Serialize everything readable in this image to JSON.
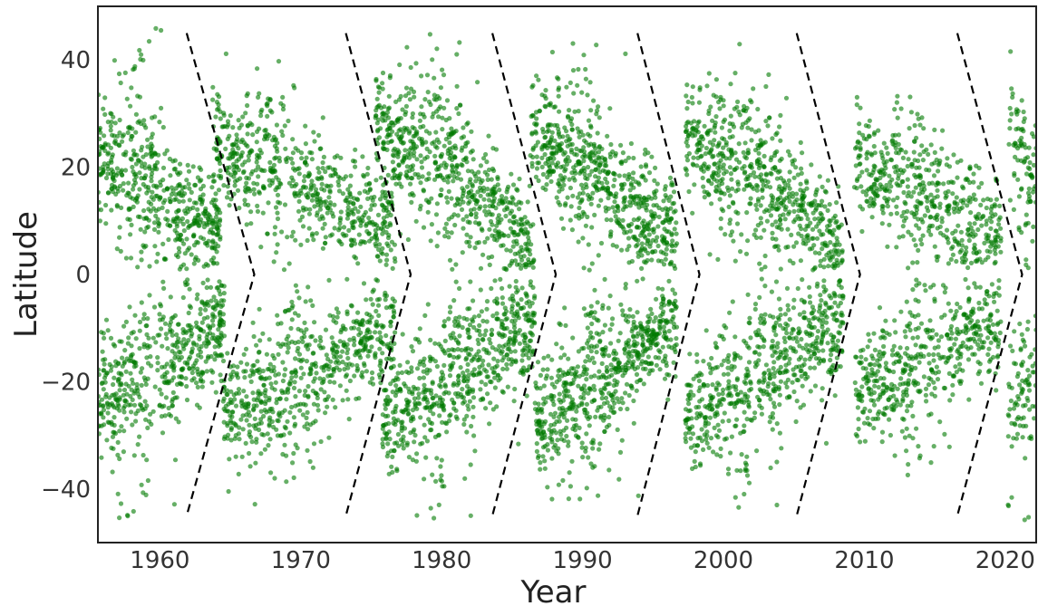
{
  "chart_data": {
    "type": "scatter",
    "title": "",
    "xlabel": "Year",
    "ylabel": "Latitude",
    "xlim": [
      1955.6,
      2022.2
    ],
    "ylim": [
      -50,
      50
    ],
    "xticks": [
      1960,
      1970,
      1980,
      1990,
      2000,
      2010,
      2020
    ],
    "xtick_labels": [
      "1960",
      "1970",
      "1980",
      "1990",
      "2000",
      "2010",
      "2020"
    ],
    "yticks": [
      40,
      20,
      0,
      -20,
      -40
    ],
    "ytick_labels": [
      "40",
      "20",
      "0",
      "−20",
      "−40"
    ],
    "grid": false,
    "legend": null,
    "colors": {
      "points": "#007a00",
      "guides": "#000000",
      "frame": "#222222"
    },
    "series": [
      {
        "kind": "points",
        "approximate": true,
        "clusters": [
          {
            "hemisphere": "north",
            "x": [
              1955.6,
              1964.3
            ],
            "start_lat": 22,
            "end_lat": 8,
            "peak": 1958.5,
            "peak_lat_max": 46,
            "n": 520
          },
          {
            "hemisphere": "south",
            "x": [
              1955.6,
              1964.6
            ],
            "start_lat": -24,
            "end_lat": -9,
            "peak": 1958.5,
            "peak_lat_max": -48,
            "n": 520
          },
          {
            "hemisphere": "north",
            "x": [
              1963.7,
              1976.7
            ],
            "start_lat": 25,
            "end_lat": 8,
            "peak": 1968.5,
            "peak_lat_max": 36,
            "n": 620
          },
          {
            "hemisphere": "south",
            "x": [
              1964.5,
              1976.7
            ],
            "start_lat": -26,
            "end_lat": -10,
            "peak": 1969.5,
            "peak_lat_max": -38,
            "n": 620
          },
          {
            "hemisphere": "north",
            "x": [
              1975.3,
              1986.6
            ],
            "start_lat": 29,
            "end_lat": 6,
            "peak": 1979.5,
            "peak_lat_max": 44,
            "n": 640
          },
          {
            "hemisphere": "south",
            "x": [
              1975.8,
              1986.6
            ],
            "start_lat": -28,
            "end_lat": -8,
            "peak": 1980.3,
            "peak_lat_max": -46,
            "n": 640
          },
          {
            "hemisphere": "north",
            "x": [
              1986.3,
              1996.7
            ],
            "start_lat": 28,
            "end_lat": 6,
            "peak": 1990,
            "peak_lat_max": 44,
            "n": 640
          },
          {
            "hemisphere": "south",
            "x": [
              1986.6,
              1996.7
            ],
            "start_lat": -28,
            "end_lat": -9,
            "peak": 1990.5,
            "peak_lat_max": -42,
            "n": 640
          },
          {
            "hemisphere": "north",
            "x": [
              1997.3,
              2008.5
            ],
            "start_lat": 26,
            "end_lat": 6,
            "peak": 2001,
            "peak_lat_max": 38,
            "n": 620
          },
          {
            "hemisphere": "south",
            "x": [
              1997.3,
              2008.5
            ],
            "start_lat": -27,
            "end_lat": -8,
            "peak": 2002,
            "peak_lat_max": -44,
            "n": 620
          },
          {
            "hemisphere": "north",
            "x": [
              2009.3,
              2019.7
            ],
            "start_lat": 22,
            "end_lat": 7,
            "peak": 2013.5,
            "peak_lat_max": 33,
            "n": 500
          },
          {
            "hemisphere": "south",
            "x": [
              2009.3,
              2019.7
            ],
            "start_lat": -23,
            "end_lat": -8,
            "peak": 2014,
            "peak_lat_max": -35,
            "n": 500
          },
          {
            "hemisphere": "north",
            "x": [
              2020.2,
              2022.2
            ],
            "start_lat": 24,
            "end_lat": 18,
            "peak": 2021,
            "peak_lat_max": 30,
            "n": 90
          },
          {
            "hemisphere": "south",
            "x": [
              2020.2,
              2022.2
            ],
            "start_lat": -24,
            "end_lat": -18,
            "peak": 2021,
            "peak_lat_max": -46,
            "n": 90
          }
        ]
      },
      {
        "kind": "guides",
        "chevrons": [
          {
            "top": [
              1961.9,
              45
            ],
            "vertex": [
              1966.7,
              0
            ],
            "bottom": [
              1961.9,
              -45
            ]
          },
          {
            "top": [
              1973.2,
              45
            ],
            "vertex": [
              1977.8,
              0
            ],
            "bottom": [
              1973.2,
              -45
            ]
          },
          {
            "top": [
              1983.6,
              45
            ],
            "vertex": [
              1988.1,
              0
            ],
            "bottom": [
              1983.6,
              -45
            ]
          },
          {
            "top": [
              1993.9,
              45
            ],
            "vertex": [
              1998.3,
              0
            ],
            "bottom": [
              1993.9,
              -45
            ]
          },
          {
            "top": [
              2005.2,
              45
            ],
            "vertex": [
              2009.7,
              0
            ],
            "bottom": [
              2005.2,
              -45
            ]
          },
          {
            "top": [
              2016.6,
              45
            ],
            "vertex": [
              2021.2,
              0
            ],
            "bottom": [
              2016.6,
              -45
            ]
          }
        ]
      }
    ]
  }
}
